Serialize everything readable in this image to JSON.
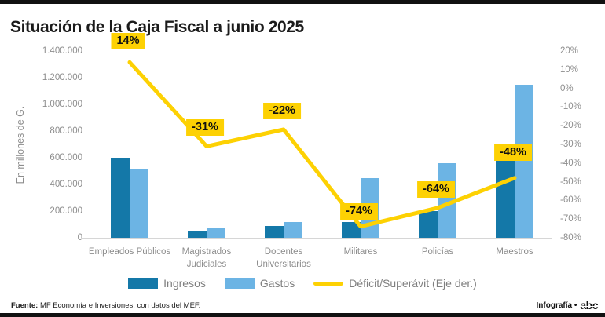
{
  "header": {
    "title": "Situación de la Caja Fiscal a junio 2025"
  },
  "chart_data": {
    "type": "bar+line",
    "categories": [
      "Empleados Públicos",
      "Magistrados Judiciales",
      "Docentes Universitarios",
      "Militares",
      "Policías",
      "Maestros"
    ],
    "left_axis": {
      "label": "En millones de G.",
      "max": 1400000,
      "ticks": [
        {
          "label": "1.400.000",
          "value": 1400000
        },
        {
          "label": "1.200.000",
          "value": 1200000
        },
        {
          "label": "1.000.000",
          "value": 1000000
        },
        {
          "label": "800.000",
          "value": 800000
        },
        {
          "label": "600.000",
          "value": 600000
        },
        {
          "label": "400.000",
          "value": 400000
        },
        {
          "label": "200.000",
          "value": 200000
        },
        {
          "label": "0",
          "value": 0
        }
      ]
    },
    "right_axis": {
      "max": 20,
      "min": -80,
      "ticks": [
        {
          "label": "20%",
          "value": 20
        },
        {
          "label": "10%",
          "value": 10
        },
        {
          "label": "0%",
          "value": 0
        },
        {
          "label": "-10%",
          "value": -10
        },
        {
          "label": "-20%",
          "value": -20
        },
        {
          "label": "-30%",
          "value": -30
        },
        {
          "label": "-40%",
          "value": -40
        },
        {
          "label": "-50%",
          "value": -50
        },
        {
          "label": "-60%",
          "value": -60
        },
        {
          "label": "-70%",
          "value": -70
        },
        {
          "label": "-80%",
          "value": -80
        }
      ]
    },
    "series": [
      {
        "name": "Ingresos",
        "type": "bar",
        "color": "#1478a8",
        "values": [
          600000,
          48000,
          90000,
          115000,
          200000,
          600000
        ]
      },
      {
        "name": "Gastos",
        "type": "bar",
        "color": "#6cb4e4",
        "values": [
          520000,
          70000,
          115000,
          450000,
          560000,
          1150000
        ]
      },
      {
        "name": "Déficit/Superávit (Eje der.)",
        "type": "line",
        "axis": "right",
        "color": "#fdd103",
        "values": [
          14,
          -31,
          -22,
          -74,
          -64,
          -48
        ],
        "labels": [
          "14%",
          "-31%",
          "-22%",
          "-74%",
          "-64%",
          "-48%"
        ]
      }
    ],
    "legend_position": "bottom",
    "grid": false
  },
  "footer": {
    "source_label": "Fuente:",
    "source_text": "MF Economía e Inversiones, con datos del MEF.",
    "credit": "Infografía •",
    "logo": "abc"
  }
}
